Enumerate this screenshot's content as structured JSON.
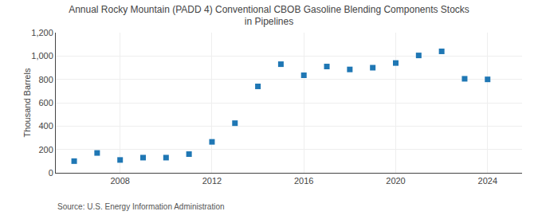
{
  "chart_data": {
    "type": "scatter",
    "title": "Annual Rocky Mountain (PADD 4) Conventional CBOB Gasoline Blending Components Stocks\nin Pipelines",
    "ylabel": "Thousand Barrels",
    "annotations": [
      "Source: U.S. Energy Information Administration"
    ],
    "x": [
      2006,
      2007,
      2008,
      2009,
      2010,
      2011,
      2012,
      2013,
      2014,
      2015,
      2016,
      2017,
      2018,
      2019,
      2020,
      2021,
      2022,
      2023,
      2024
    ],
    "values": [
      100,
      170,
      110,
      130,
      130,
      160,
      265,
      425,
      740,
      930,
      835,
      910,
      885,
      900,
      940,
      1005,
      1040,
      805,
      800
    ],
    "marker": "square",
    "xlim": [
      2005.2,
      2025.5
    ],
    "xticks": [
      2008,
      2012,
      2016,
      2020,
      2024
    ],
    "ylim": [
      0,
      1200
    ],
    "yticks": [
      0,
      200,
      400,
      600,
      800,
      {
        "value": 1000,
        "label": "1,000"
      },
      {
        "value": 1200,
        "label": "1,200"
      }
    ],
    "grid": true
  }
}
